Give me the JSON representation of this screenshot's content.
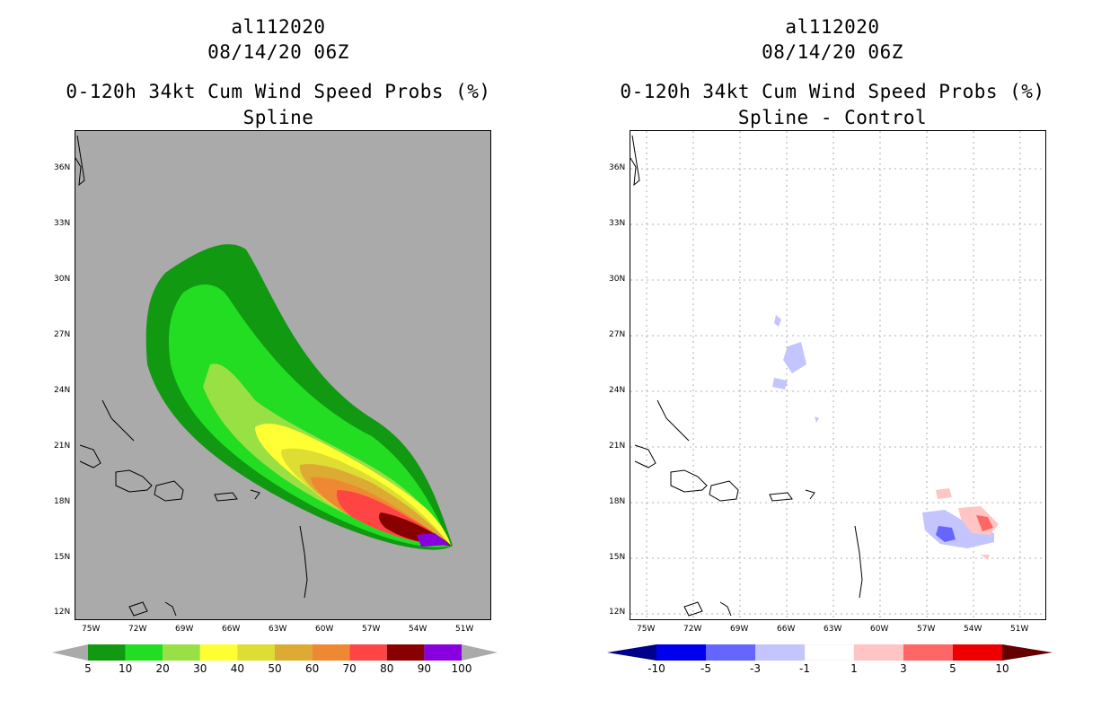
{
  "left": {
    "storm_id": "al112020",
    "datetime": "08/14/20 06Z",
    "product": "0-120h 34kt Cum Wind Speed Probs (%)",
    "subtitle": "Spline",
    "lat_labels": [
      "36N",
      "33N",
      "30N",
      "27N",
      "24N",
      "21N",
      "18N",
      "15N",
      "12N"
    ],
    "lon_labels": [
      "75W",
      "72W",
      "69W",
      "66W",
      "63W",
      "60W",
      "57W",
      "54W",
      "51W"
    ],
    "colorbar": {
      "labels": [
        "5",
        "10",
        "20",
        "30",
        "40",
        "50",
        "60",
        "70",
        "80",
        "90",
        "100"
      ],
      "colors": [
        "#119911",
        "#22dd22",
        "#99e044",
        "#ffff33",
        "#dddd33",
        "#ddaa33",
        "#ee8833",
        "#ff4444",
        "#880000",
        "#8800dd"
      ]
    }
  },
  "right": {
    "storm_id": "al112020",
    "datetime": "08/14/20 06Z",
    "product": "0-120h 34kt Cum Wind Speed Probs (%)",
    "subtitle": "Spline - Control",
    "lat_labels": [
      "36N",
      "33N",
      "30N",
      "27N",
      "24N",
      "21N",
      "18N",
      "15N",
      "12N"
    ],
    "lon_labels": [
      "75W",
      "72W",
      "69W",
      "66W",
      "63W",
      "60W",
      "57W",
      "54W",
      "51W"
    ],
    "colorbar": {
      "labels": [
        "-10",
        "-5",
        "-3",
        "-1",
        "1",
        "3",
        "5",
        "10"
      ],
      "colors": [
        "#0000ee",
        "#6666ff",
        "#c4c4ff",
        "#ffffff",
        "#ffc4c4",
        "#ff6666",
        "#ee0000"
      ]
    }
  }
}
